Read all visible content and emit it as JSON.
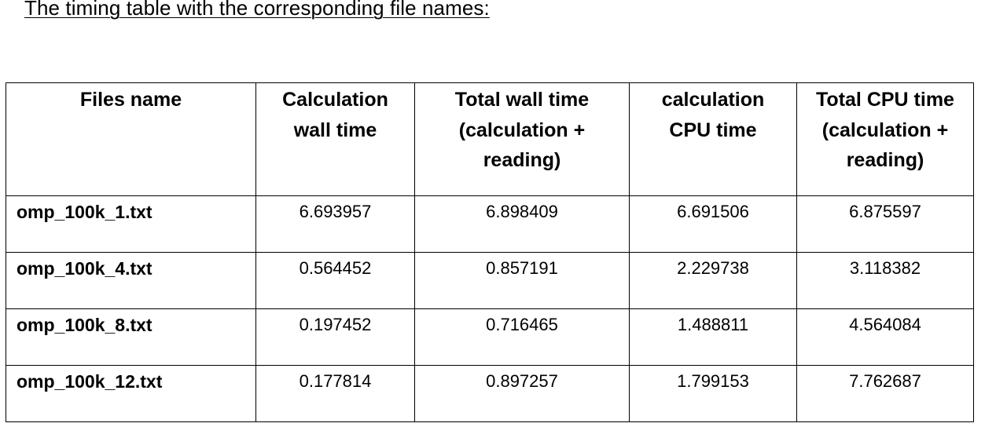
{
  "heading": "The timing table with the corresponding file names:",
  "columns": [
    {
      "lines": [
        "Files name"
      ]
    },
    {
      "lines": [
        "Calculation",
        "wall time"
      ]
    },
    {
      "lines": [
        "Total wall time",
        "(calculation +",
        "reading)"
      ]
    },
    {
      "lines": [
        "calculation",
        "CPU time"
      ]
    },
    {
      "lines": [
        "Total CPU time",
        "(calculation +",
        "reading)"
      ]
    }
  ],
  "rows": [
    {
      "file": "omp_100k_1.txt",
      "calc_wall": "6.693957",
      "total_wall": "6.898409",
      "calc_cpu": "6.691506",
      "total_cpu": "6.875597"
    },
    {
      "file": "omp_100k_4.txt",
      "calc_wall": "0.564452",
      "total_wall": "0.857191",
      "calc_cpu": "2.229738",
      "total_cpu": "3.118382"
    },
    {
      "file": "omp_100k_8.txt",
      "calc_wall": "0.197452",
      "total_wall": "0.716465",
      "calc_cpu": "1.488811",
      "total_cpu": "4.564084"
    },
    {
      "file": "omp_100k_12.txt",
      "calc_wall": "0.177814",
      "total_wall": "0.897257",
      "calc_cpu": "1.799153",
      "total_cpu": "7.762687"
    }
  ]
}
